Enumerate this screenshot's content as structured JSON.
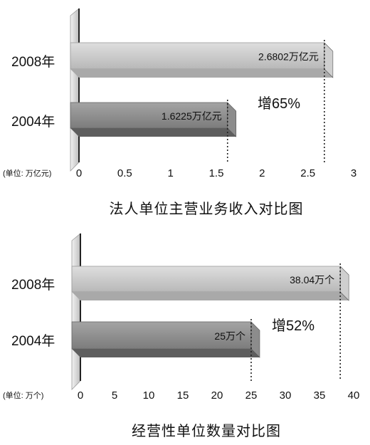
{
  "chart_data": [
    {
      "type": "bar",
      "orientation": "horizontal",
      "title": "法人单位主营业务收入对比图",
      "unit_label": "(单位: 万亿元)",
      "categories": [
        "2008年",
        "2004年"
      ],
      "values": [
        2.6802,
        1.6225
      ],
      "data_labels": [
        "2.6802万亿元",
        "1.6225万亿元"
      ],
      "annotation": "增65%",
      "xlim": [
        0,
        3
      ],
      "xticks": [
        0,
        0.5,
        1,
        1.5,
        2,
        2.5,
        3
      ],
      "xtick_labels": [
        "0",
        "0.5",
        "1",
        "1.5",
        "2",
        "2.5",
        "3"
      ],
      "grid": false,
      "colors": {
        "bar_2008": "#c8c8c8",
        "bar_2004": "#8a8a8a"
      }
    },
    {
      "type": "bar",
      "orientation": "horizontal",
      "title": "经营性单位数量对比图",
      "unit_label": "(单位: 万个)",
      "categories": [
        "2008年",
        "2004年"
      ],
      "values": [
        38.04,
        25
      ],
      "data_labels": [
        "38.04万个",
        "25万个"
      ],
      "annotation": "增52%",
      "xlim": [
        0,
        40
      ],
      "xticks": [
        0,
        5,
        10,
        15,
        20,
        25,
        30,
        35,
        40
      ],
      "xtick_labels": [
        "0",
        "5",
        "10",
        "15",
        "20",
        "25",
        "30",
        "35",
        "40"
      ],
      "grid": false,
      "colors": {
        "bar_2008": "#c8c8c8",
        "bar_2004": "#8a8a8a"
      }
    }
  ]
}
